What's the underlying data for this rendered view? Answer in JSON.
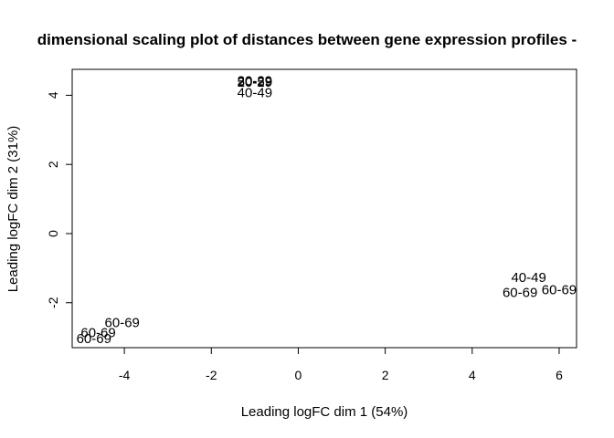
{
  "chart_data": {
    "type": "scatter",
    "title": "dimensional scaling plot of distances between gene expression profiles -",
    "xlabel": "Leading logFC dim 1 (54%)",
    "ylabel": "Leading logFC dim 2 (31%)",
    "xlim": [
      -5.2,
      6.4
    ],
    "ylim": [
      -3.3,
      4.75
    ],
    "xticks": [
      -4,
      -2,
      0,
      2,
      4,
      6
    ],
    "yticks": [
      -2,
      0,
      2,
      4
    ],
    "xtick_labels": [
      "-4",
      "-2",
      "0",
      "2",
      "4",
      "6"
    ],
    "ytick_labels": [
      "-2",
      "0",
      "2",
      "4"
    ],
    "grid": false,
    "marker": "text-label",
    "points": [
      {
        "label": "20-29",
        "x": -1.0,
        "y": 4.42
      },
      {
        "label": "20-29",
        "x": -1.0,
        "y": 4.38
      },
      {
        "label": "50-59",
        "x": -1.0,
        "y": 4.4
      },
      {
        "label": "40-49",
        "x": -1.0,
        "y": 4.08
      },
      {
        "label": "40-49",
        "x": 5.3,
        "y": -1.27
      },
      {
        "label": "60-69",
        "x": 6.0,
        "y": -1.62
      },
      {
        "label": "60-69",
        "x": 5.1,
        "y": -1.7
      },
      {
        "label": "60-69",
        "x": -4.05,
        "y": -2.57
      },
      {
        "label": "60-69",
        "x": -4.6,
        "y": -2.87
      },
      {
        "label": "60-69",
        "x": -4.7,
        "y": -3.03
      }
    ]
  }
}
